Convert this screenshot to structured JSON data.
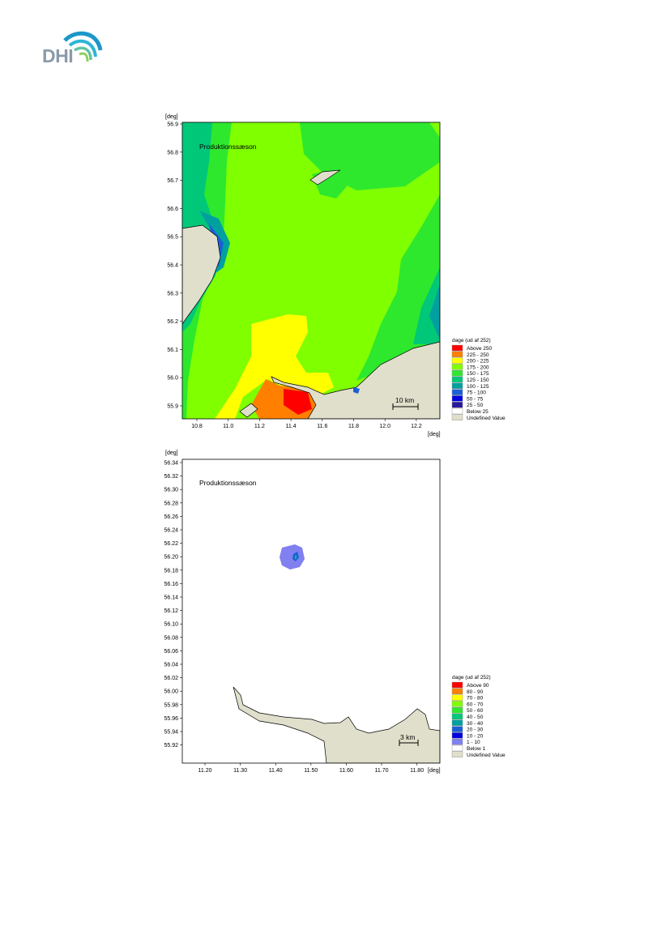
{
  "logo": {
    "text": "DHI"
  },
  "maps": [
    {
      "title": "Produktionssæson",
      "y_unit": "[deg]",
      "x_unit": "[deg]",
      "y_ticks": [
        "56.9",
        "56.8",
        "56.7",
        "56.6",
        "56.5",
        "56.4",
        "56.3",
        "56.2",
        "56.1",
        "56.0",
        "55.9"
      ],
      "x_ticks": [
        "10.8",
        "11.0",
        "11.2",
        "11.4",
        "11.6",
        "11.8",
        "12.0",
        "12.2"
      ],
      "scale_bar": "10 km",
      "legend": {
        "title": "dage (ud af 252)",
        "items": [
          {
            "label": "Above 250",
            "color": "#ff0000"
          },
          {
            "label": "225 - 250",
            "color": "#ff8000"
          },
          {
            "label": "200 - 225",
            "color": "#ffff00"
          },
          {
            "label": "175 - 200",
            "color": "#80ff00"
          },
          {
            "label": "150 - 175",
            "color": "#2ee82e"
          },
          {
            "label": "125 - 150",
            "color": "#00c878"
          },
          {
            "label": "100 - 125",
            "color": "#00a0a0"
          },
          {
            "label": "75 - 100",
            "color": "#1a5fd6"
          },
          {
            "label": "50 -  75",
            "color": "#0000e0"
          },
          {
            "label": "25 -  50",
            "color": "#2a1a9a"
          },
          {
            "label": "Below   25",
            "color": "#ffffff"
          },
          {
            "label": "Undefined Value",
            "color": "#e0dfcb"
          }
        ]
      }
    },
    {
      "title": "Produktionssæson",
      "y_unit": "[deg]",
      "x_unit": "[deg]",
      "y_ticks": [
        "56.34",
        "56.32",
        "56.30",
        "56.28",
        "56.26",
        "56.24",
        "56.22",
        "56.20",
        "56.18",
        "56.16",
        "56.14",
        "56.12",
        "56.10",
        "56.08",
        "56.06",
        "56.04",
        "56.02",
        "56.00",
        "55.98",
        "55.96",
        "55.94",
        "55.92"
      ],
      "x_ticks": [
        "11.20",
        "11.30",
        "11.40",
        "11.50",
        "11.60",
        "11.70",
        "11.80"
      ],
      "scale_bar": "3 km",
      "legend": {
        "title": "dage (ud af 252)",
        "items": [
          {
            "label": "Above 90",
            "color": "#ff0000"
          },
          {
            "label": "80 - 90",
            "color": "#ff8000"
          },
          {
            "label": "70 - 80",
            "color": "#ffff00"
          },
          {
            "label": "60 - 70",
            "color": "#80ff00"
          },
          {
            "label": "50 - 60",
            "color": "#2ee82e"
          },
          {
            "label": "40 - 50",
            "color": "#00c878"
          },
          {
            "label": "30 - 40",
            "color": "#00a0a0"
          },
          {
            "label": "20 - 30",
            "color": "#1a5fd6"
          },
          {
            "label": "10 - 20",
            "color": "#0000e0"
          },
          {
            "label": "1 - 10",
            "color": "#8080f0"
          },
          {
            "label": "Below   1",
            "color": "#ffffff"
          },
          {
            "label": "Undefined Value",
            "color": "#e0dfcb"
          }
        ]
      }
    }
  ]
}
